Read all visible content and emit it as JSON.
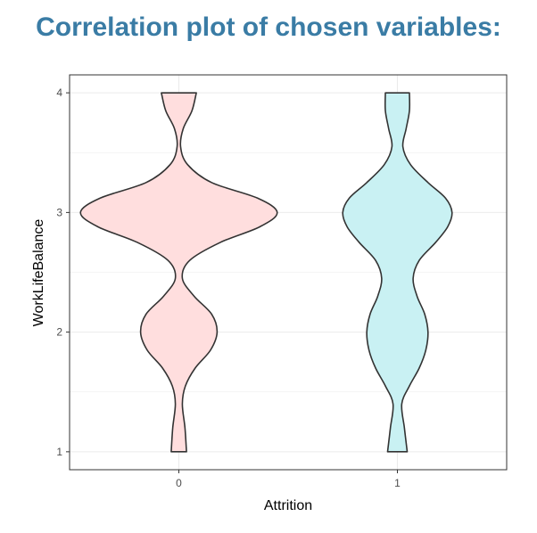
{
  "title": "Correlation plot of chosen variables:",
  "colors": {
    "title": "#3a7ca5",
    "violin_outline": "#333333",
    "grid": "#ebebeb",
    "panel_border": "#333333"
  },
  "chart_data": {
    "type": "violin",
    "title": "",
    "xlabel": "Attrition",
    "ylabel": "WorkLifeBalance",
    "categories": [
      "0",
      "1"
    ],
    "yticks": [
      1,
      2,
      3,
      4
    ],
    "ylim": [
      0.85,
      4.15
    ],
    "grid": true,
    "legend": "none",
    "series": [
      {
        "category": "0",
        "fill": "#ffdede",
        "density_profile": [
          {
            "y": 1.0,
            "half_width": 0.035
          },
          {
            "y": 1.2,
            "half_width": 0.028
          },
          {
            "y": 1.4,
            "half_width": 0.016
          },
          {
            "y": 1.55,
            "half_width": 0.03
          },
          {
            "y": 1.7,
            "half_width": 0.075
          },
          {
            "y": 1.85,
            "half_width": 0.145
          },
          {
            "y": 2.0,
            "half_width": 0.175
          },
          {
            "y": 2.15,
            "half_width": 0.15
          },
          {
            "y": 2.3,
            "half_width": 0.07
          },
          {
            "y": 2.45,
            "half_width": 0.016
          },
          {
            "y": 2.6,
            "half_width": 0.05
          },
          {
            "y": 2.75,
            "half_width": 0.19
          },
          {
            "y": 2.88,
            "half_width": 0.37
          },
          {
            "y": 3.0,
            "half_width": 0.45
          },
          {
            "y": 3.12,
            "half_width": 0.36
          },
          {
            "y": 3.25,
            "half_width": 0.15
          },
          {
            "y": 3.4,
            "half_width": 0.04
          },
          {
            "y": 3.55,
            "half_width": 0.008
          },
          {
            "y": 3.7,
            "half_width": 0.02
          },
          {
            "y": 3.85,
            "half_width": 0.06
          },
          {
            "y": 4.0,
            "half_width": 0.08
          }
        ]
      },
      {
        "category": "1",
        "fill": "#c9f1f3",
        "density_profile": [
          {
            "y": 1.0,
            "half_width": 0.045
          },
          {
            "y": 1.2,
            "half_width": 0.032
          },
          {
            "y": 1.4,
            "half_width": 0.02
          },
          {
            "y": 1.55,
            "half_width": 0.055
          },
          {
            "y": 1.7,
            "half_width": 0.1
          },
          {
            "y": 1.85,
            "half_width": 0.13
          },
          {
            "y": 2.0,
            "half_width": 0.14
          },
          {
            "y": 2.15,
            "half_width": 0.125
          },
          {
            "y": 2.3,
            "half_width": 0.09
          },
          {
            "y": 2.45,
            "half_width": 0.072
          },
          {
            "y": 2.6,
            "half_width": 0.1
          },
          {
            "y": 2.75,
            "half_width": 0.175
          },
          {
            "y": 2.88,
            "half_width": 0.23
          },
          {
            "y": 3.0,
            "half_width": 0.25
          },
          {
            "y": 3.12,
            "half_width": 0.22
          },
          {
            "y": 3.25,
            "half_width": 0.14
          },
          {
            "y": 3.4,
            "half_width": 0.06
          },
          {
            "y": 3.55,
            "half_width": 0.025
          },
          {
            "y": 3.7,
            "half_width": 0.04
          },
          {
            "y": 3.85,
            "half_width": 0.055
          },
          {
            "y": 4.0,
            "half_width": 0.055
          }
        ]
      }
    ]
  }
}
